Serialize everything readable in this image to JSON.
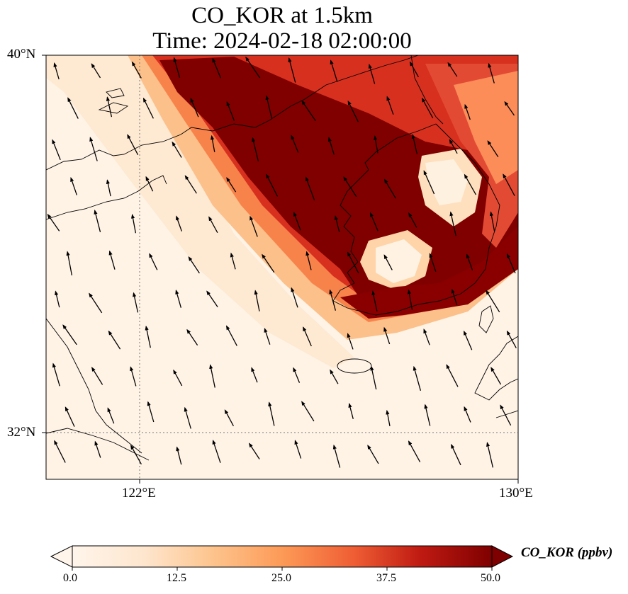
{
  "title_line_1": "CO_KOR at 1.5km",
  "title_line_2": "Time: 2024-02-18 02:00:00",
  "lat_ticks": [
    "40°N",
    "32°N"
  ],
  "lon_ticks": [
    "122°E",
    "130°E"
  ],
  "colorbar": {
    "label": "CO_KOR (ppbv)",
    "ticks": [
      "0.0",
      "12.5",
      "25.0",
      "37.5",
      "50.0"
    ],
    "colors": [
      "#fff5eb",
      "#fdd9ae",
      "#fdab67",
      "#f46d2a",
      "#c9331f",
      "#a50d0d",
      "#7f0000"
    ]
  },
  "map": {
    "lon_range": [
      120,
      130
    ],
    "lat_range": [
      31,
      40
    ],
    "gridlines": "dotted",
    "colormap": "OrRd",
    "plume_max_ppbv": 50,
    "background_ppbv": 2,
    "wind_arrows": true
  }
}
